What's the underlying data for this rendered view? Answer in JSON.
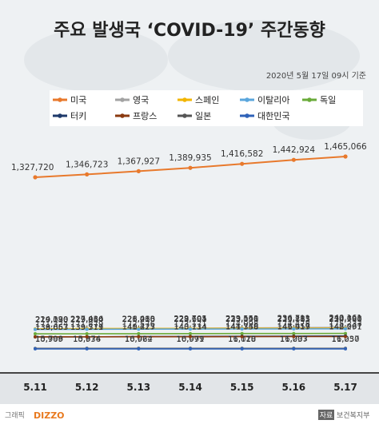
{
  "title": "주요 발생국 ‘COVID-19’ 주간동향",
  "date_note": "2020년 5월 17일 09시 기준",
  "footer": {
    "brand_prefix": "그래픽",
    "brand": "DIZZO",
    "source_label": "자료",
    "source": "보건복지부"
  },
  "chart_data": {
    "type": "line",
    "x": [
      "5.11",
      "5.12",
      "5.13",
      "5.14",
      "5.15",
      "5.16",
      "5.17"
    ],
    "legend_placement": "top",
    "grid": false,
    "series": [
      {
        "name": "미국",
        "color": "#e8792c",
        "values": [
          1327720,
          1346723,
          1367927,
          1389935,
          1416582,
          1442924,
          1465066
        ],
        "labels": [
          "1,327,720",
          "1,346,723",
          "1,367,927",
          "1,389,935",
          "1,416,582",
          "1,442,924",
          "1,465,066"
        ]
      },
      {
        "name": "영국",
        "color": "#a3a3a3",
        "values": [
          219183,
          223060,
          226463,
          229705,
          233151,
          236711,
          240161
        ],
        "labels": [
          "219,183",
          "223,060",
          "226,463",
          "229,705",
          "233,151",
          "236,711",
          "240,161"
        ]
      },
      {
        "name": "스페인",
        "color": "#f2b500",
        "values": [
          224390,
          227436,
          228030,
          228691,
          229540,
          230183,
          230698
        ],
        "labels": [
          "224,390",
          "227,436",
          "228,030",
          "228,691",
          "229,540",
          "230,183",
          "230,698"
        ]
      },
      {
        "name": "이탈리아",
        "color": "#5aa6dd",
        "values": [
          219070,
          219814,
          221216,
          222104,
          223096,
          223885,
          224760
        ],
        "labels": [
          "219,070",
          "219,814",
          "221,216",
          "222,104",
          "223,096",
          "223,885",
          "224,760"
        ]
      },
      {
        "name": "독일",
        "color": "#6aab3a",
        "values": [
          171324,
          171879,
          172576,
          173171,
          174098,
          174478,
          175233
        ],
        "labels": [
          "171,324",
          "171,879",
          "172,576",
          "173,171",
          "174,098",
          "174,478",
          "175,233"
        ]
      },
      {
        "name": "터키",
        "color": "#1f3a6b",
        "values": [
          138657,
          139771,
          141475,
          143114,
          144749,
          146457,
          148067
        ],
        "labels": [
          "138,657",
          "139,771",
          "141,475",
          "143,114",
          "144,749",
          "146,457",
          "148,067"
        ]
      },
      {
        "name": "프랑스",
        "color": "#8b3a10",
        "values": [
          139063,
          139519,
          140227,
          140734,
          141356,
          141919,
          142291
        ],
        "labels": [
          "139,063",
          "139,519",
          "140,227",
          "140,734",
          "141,356",
          "141,919",
          "142,291"
        ]
      },
      {
        "name": "일본",
        "color": "#555555",
        "values": [
          15798,
          15874,
          16024,
          16079,
          16120,
          16203,
          16237
        ],
        "labels": [
          "15,798",
          "15,874",
          "16,024",
          "16,079",
          "16,120",
          "16,203",
          "16,237"
        ]
      },
      {
        "name": "대한민국",
        "color": "#2f62b8",
        "values": [
          10909,
          10936,
          10962,
          10991,
          11018,
          11037,
          11050
        ],
        "labels": [
          "10,909",
          "10,936",
          "10,962",
          "10,991",
          "11,018",
          "11,037",
          "11,050"
        ]
      }
    ]
  }
}
